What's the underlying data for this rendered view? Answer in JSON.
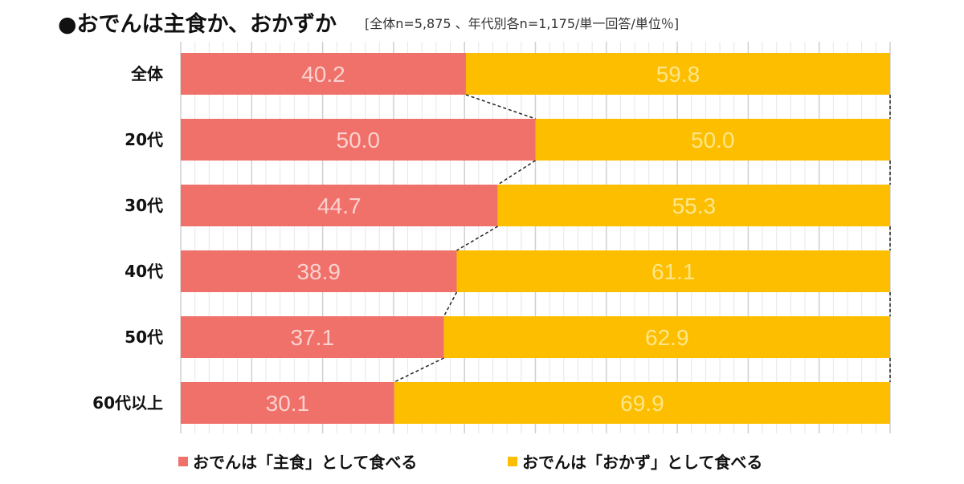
{
  "header": {
    "title": "●おでんは主食か、おかずか",
    "subtitle": "[全体n=5,875 、年代別各n=1,175/単一回答/単位％]"
  },
  "colors": {
    "series1": "#f0706a",
    "series2": "#fdbe00",
    "series1_label": "#fbd2cf",
    "series2_label": "#fde68a",
    "grid_minor": "#e6e6e6",
    "grid_major": "#d0d0d0",
    "connector": "#222222"
  },
  "chart_data": {
    "type": "bar",
    "orientation": "horizontal",
    "stacked": "100%",
    "title": "おでんは主食か、おかずか",
    "unit": "%",
    "categories": [
      "全体",
      "20代",
      "30代",
      "40代",
      "50代",
      "60代以上"
    ],
    "series": [
      {
        "name": "おでんは「主食」として食べる",
        "values": [
          40.2,
          50.0,
          44.7,
          38.9,
          37.1,
          30.1
        ]
      },
      {
        "name": "おでんは「おかず」として食べる",
        "values": [
          59.8,
          50.0,
          55.3,
          61.1,
          62.9,
          69.9
        ]
      }
    ],
    "value_labels": [
      [
        "40.2",
        "50.0",
        "44.7",
        "38.9",
        "37.1",
        "30.1"
      ],
      [
        "59.8",
        "50.0",
        "55.3",
        "61.1",
        "62.9",
        "69.9"
      ]
    ],
    "xlim": [
      0,
      100
    ],
    "grid": true,
    "grid_minor_step": 2,
    "grid_major_step": 10,
    "series_connectors": "dashed",
    "legend_position": "bottom"
  },
  "legend": {
    "items": [
      {
        "label": "おでんは「主食」として食べる"
      },
      {
        "label": "おでんは「おかず」として食べる"
      }
    ]
  }
}
